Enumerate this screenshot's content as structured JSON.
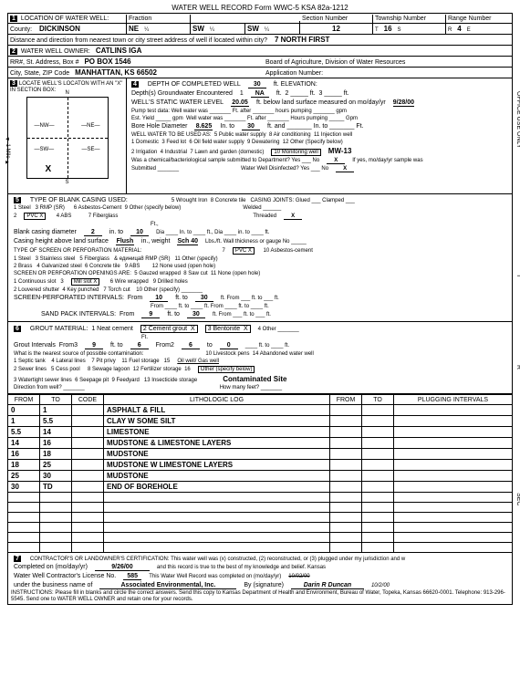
{
  "form_header": "WATER WELL RECORD    Form WWC-5    KSA 82a-1212",
  "location": {
    "county": "DICKINSON",
    "fraction1": "NE",
    "fraction2": "SW",
    "fraction3": "SW",
    "section": "12",
    "township": "16",
    "range": "4",
    "range_dir": "E",
    "distance_label": "Distance and direction from nearest town or city street address of well if located within city?",
    "distance": "7 NORTH FIRST"
  },
  "owner": {
    "name": "CATLINS IGA",
    "addr": "PO BOX 1546",
    "city": "MANHATTAN, KS 66502",
    "board": "Board of Agriculture, Division of Water Resources",
    "appnum_label": "Application Number:"
  },
  "well": {
    "depth": "30",
    "depth_unit": "ft. ELEVATION:",
    "gw_enc": "1",
    "gw_na": "NA",
    "gw_ft": "ft.",
    "static": "20.05",
    "static_date": "9/28/00",
    "bore_dia": "8.625",
    "bore_to": "30",
    "use_checked": "10  Monitoring well",
    "mw": "MW-13",
    "chem_no": "X",
    "disinfect_no": "X"
  },
  "casing": {
    "pvc_x": "X",
    "threaded_x": "X",
    "blank_dia": "2",
    "blank_to": "10",
    "height": "Flush",
    "weight": "Sch 40"
  },
  "screen": {
    "pvc_x": "X",
    "millslot_x": "X",
    "perf_from": "10",
    "perf_to": "30",
    "sand_from": "9",
    "sand_to": "30"
  },
  "grout": {
    "cement_x": "X",
    "bentonite_x": "X",
    "from3": "9",
    "to3": "6",
    "from2": "6",
    "to2": "0",
    "contam": "Contaminated Site",
    "oilwell": "Oil well/ Gas well"
  },
  "log": {
    "rows": [
      {
        "from": "0",
        "to": "1",
        "desc": "ASPHALT & FILL"
      },
      {
        "from": "1",
        "to": "5.5",
        "desc": "CLAY W SOME SILT"
      },
      {
        "from": "5.5",
        "to": "14",
        "desc": "LIMESTONE"
      },
      {
        "from": "14",
        "to": "16",
        "desc": "MUDSTONE & LIMESTONE LAYERS"
      },
      {
        "from": "16",
        "to": "18",
        "desc": "MUDSTONE"
      },
      {
        "from": "18",
        "to": "25",
        "desc": "MUDSTONE W LIMESTONE LAYERS"
      },
      {
        "from": "25",
        "to": "30",
        "desc": "MUDSTONE"
      },
      {
        "from": "30",
        "to": "TD",
        "desc": "END OF BOREHOLE"
      }
    ]
  },
  "cert": {
    "completed": "9/26/00",
    "license": "585",
    "business": "Associated Environmental, Inc.",
    "by": "Darin R Duncan",
    "date": "10/2/00",
    "instructions": "INSTRUCTIONS: Please fill in blanks and circle the correct answers. Send this copy to Kansas Department of Health and Environment, Bureau of Water, Topeka, Kansas 66620-0001. Telephone: 913-296-5545. Send one to WATER WELL OWNER and retain one for your records."
  }
}
